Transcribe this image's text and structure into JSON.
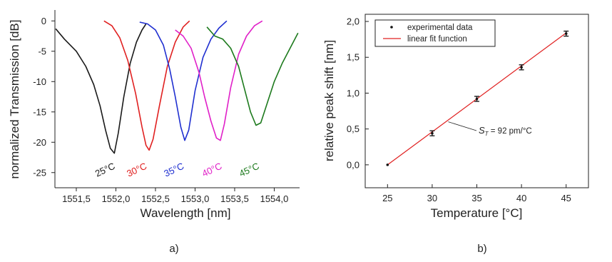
{
  "chart_data": [
    {
      "type": "line",
      "panel_label": "a)",
      "xlabel": "Wavelength [nm]",
      "ylabel": "normalized Transmission [dB]",
      "xlim": [
        1551.23,
        1554.32
      ],
      "ylim": [
        -27.5,
        1.8
      ],
      "xticks": [
        1551.5,
        1552.0,
        1552.5,
        1553.0,
        1553.5,
        1554.0
      ],
      "xtick_labels": [
        "1551,5",
        "1552,0",
        "1552,5",
        "1553,0",
        "1553,5",
        "1554,0"
      ],
      "yticks": [
        0,
        -5,
        -10,
        -15,
        -20,
        -25
      ],
      "ytick_labels": [
        "0",
        "-5",
        "-10",
        "-15",
        "-20",
        "-25"
      ],
      "grid": false,
      "series": [
        {
          "name": "25°C",
          "color": "#1a1a1a",
          "x": [
            1551.24,
            1551.35,
            1551.5,
            1551.62,
            1551.72,
            1551.8,
            1551.87,
            1551.93,
            1551.98,
            1552.03,
            1552.1,
            1552.18,
            1552.26,
            1552.33,
            1552.38
          ],
          "y": [
            -1.3,
            -3.0,
            -5.0,
            -7.5,
            -10.5,
            -14.0,
            -18.0,
            -21.0,
            -21.8,
            -18.5,
            -12.5,
            -7.0,
            -3.5,
            -1.5,
            -0.5
          ]
        },
        {
          "name": "30°C",
          "color": "#e02020",
          "x": [
            1551.85,
            1551.95,
            1552.05,
            1552.15,
            1552.25,
            1552.33,
            1552.38,
            1552.42,
            1552.47,
            1552.55,
            1552.65,
            1552.75,
            1552.85,
            1552.93
          ],
          "y": [
            0.0,
            -0.8,
            -2.8,
            -6.5,
            -12.0,
            -17.5,
            -20.5,
            -21.3,
            -19.5,
            -14.0,
            -7.5,
            -3.5,
            -1.0,
            0.0
          ]
        },
        {
          "name": "35°C",
          "color": "#1f2fd0",
          "x": [
            1552.3,
            1552.4,
            1552.5,
            1552.6,
            1552.68,
            1552.75,
            1552.82,
            1552.87,
            1552.92,
            1553.0,
            1553.1,
            1553.2,
            1553.3,
            1553.4
          ],
          "y": [
            -0.2,
            -0.5,
            -1.5,
            -4.0,
            -8.0,
            -12.5,
            -17.5,
            -19.7,
            -18.0,
            -11.5,
            -6.0,
            -3.0,
            -1.2,
            0.0
          ]
        },
        {
          "name": "40°C",
          "color": "#e020c8",
          "x": [
            1552.75,
            1552.85,
            1552.95,
            1553.05,
            1553.12,
            1553.2,
            1553.27,
            1553.32,
            1553.37,
            1553.45,
            1553.55,
            1553.65,
            1553.75,
            1553.85
          ],
          "y": [
            -1.5,
            -2.5,
            -4.5,
            -8.5,
            -12.5,
            -16.5,
            -19.3,
            -19.7,
            -17.0,
            -11.0,
            -5.5,
            -2.5,
            -0.8,
            0.0
          ]
        },
        {
          "name": "45°C",
          "color": "#1d7a1d",
          "x": [
            1553.15,
            1553.25,
            1553.35,
            1553.45,
            1553.55,
            1553.62,
            1553.7,
            1553.77,
            1553.83,
            1553.9,
            1554.0,
            1554.1,
            1554.2,
            1554.3
          ],
          "y": [
            -1.0,
            -2.5,
            -3.0,
            -4.5,
            -7.5,
            -11.0,
            -15.0,
            -17.2,
            -16.8,
            -14.0,
            -10.0,
            -7.0,
            -4.5,
            -2.0
          ]
        }
      ],
      "annotations": [
        {
          "text": "25°C",
          "color": "#1a1a1a",
          "x": 1551.88,
          "y": -25.0
        },
        {
          "text": "30°C",
          "color": "#e02020",
          "x": 1552.28,
          "y": -25.0
        },
        {
          "text": "35°C",
          "color": "#1f2fd0",
          "x": 1552.75,
          "y": -25.0
        },
        {
          "text": "40°C",
          "color": "#e020c8",
          "x": 1553.23,
          "y": -25.0
        },
        {
          "text": "45°C",
          "color": "#1d7a1d",
          "x": 1553.7,
          "y": -25.0
        }
      ]
    },
    {
      "type": "scatter",
      "panel_label": "b)",
      "xlabel": "Temperature [°C]",
      "ylabel": "relative peak shift [nm]",
      "xlim": [
        22.5,
        47.5
      ],
      "ylim": [
        -0.32,
        2.1
      ],
      "xticks": [
        25,
        30,
        35,
        40,
        45
      ],
      "xtick_labels": [
        "25",
        "30",
        "35",
        "40",
        "45"
      ],
      "yticks": [
        0.0,
        0.5,
        1.0,
        1.5,
        2.0
      ],
      "ytick_labels": [
        "0,0",
        "0,5",
        "1,0",
        "1,5",
        "2,0"
      ],
      "grid": false,
      "legend_position": "top-left",
      "series": [
        {
          "name": "experimental data",
          "color": "#111111",
          "x": [
            25,
            30,
            35,
            40,
            45
          ],
          "y": [
            0.0,
            0.44,
            0.92,
            1.36,
            1.83
          ],
          "yerr": [
            0.0,
            0.035,
            0.035,
            0.035,
            0.035
          ]
        },
        {
          "name": "linear fit function",
          "color": "#e02020",
          "x": [
            25,
            45
          ],
          "y": [
            0.0,
            1.84
          ]
        }
      ],
      "annotation": {
        "symbol": "S",
        "subscript": "T",
        "text": " = 92 pm/°C",
        "arrow_to_x": 31.8,
        "arrow_to_y": 0.6
      }
    }
  ]
}
